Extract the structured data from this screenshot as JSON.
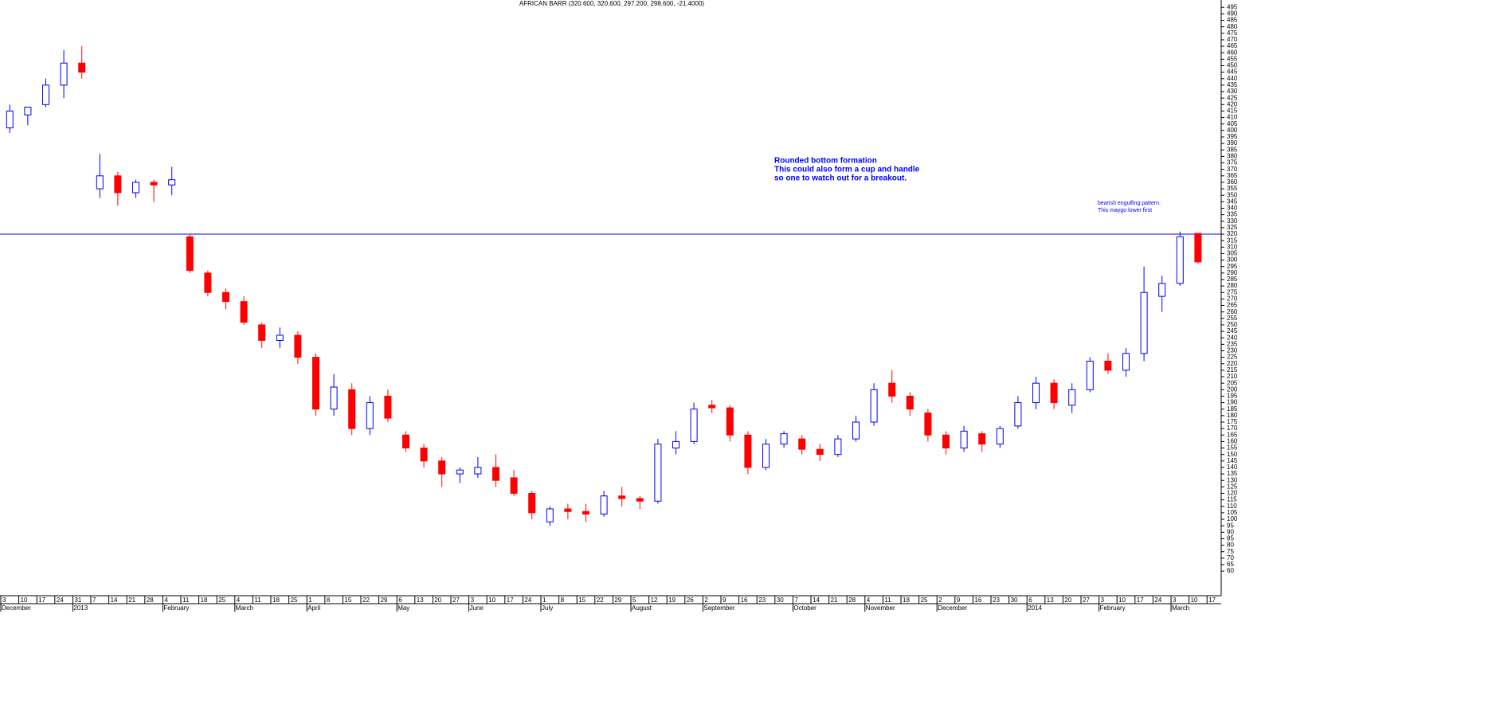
{
  "chart_data": {
    "type": "candlestick",
    "title": "AFRICAN BARR (320.600, 320.600, 297.200, 298.600, -21.4000)",
    "up_color": "#0000ff",
    "down_color": "#ff0000",
    "open": [
      402,
      412,
      420,
      435,
      452,
      355,
      365,
      352,
      360,
      358,
      318,
      290,
      275,
      268,
      250,
      238,
      242,
      225,
      185,
      200,
      170,
      195,
      165,
      155,
      145,
      135,
      135,
      140,
      132,
      120,
      98,
      108,
      106,
      104,
      118,
      116,
      114,
      155,
      160,
      188,
      186,
      165,
      140,
      158,
      162,
      154,
      150,
      162,
      175,
      205,
      195,
      182,
      165,
      155,
      166,
      158,
      172,
      190,
      205,
      188,
      200,
      222,
      215,
      228,
      272,
      282,
      320.6
    ],
    "high": [
      420,
      418,
      440,
      462,
      465,
      382,
      368,
      362,
      362,
      372,
      320,
      292,
      278,
      272,
      252,
      248,
      245,
      228,
      212,
      205,
      195,
      200,
      168,
      158,
      148,
      140,
      148,
      150,
      138,
      122,
      110,
      112,
      112,
      122,
      125,
      118,
      162,
      168,
      190,
      192,
      188,
      168,
      162,
      168,
      165,
      158,
      165,
      180,
      205,
      215,
      198,
      185,
      168,
      172,
      168,
      172,
      195,
      210,
      208,
      205,
      225,
      228,
      232,
      295,
      288,
      322,
      320.6
    ],
    "low": [
      398,
      404,
      418,
      425,
      440,
      348,
      342,
      348,
      345,
      350,
      290,
      272,
      262,
      250,
      232,
      232,
      220,
      180,
      180,
      165,
      165,
      175,
      152,
      140,
      125,
      128,
      132,
      125,
      118,
      100,
      95,
      100,
      98,
      102,
      110,
      108,
      112,
      150,
      158,
      182,
      160,
      135,
      138,
      155,
      150,
      145,
      148,
      160,
      172,
      190,
      180,
      160,
      150,
      152,
      152,
      155,
      170,
      185,
      185,
      182,
      198,
      212,
      210,
      222,
      260,
      280,
      297.2
    ],
    "close": [
      415,
      418,
      435,
      452,
      445,
      365,
      352,
      360,
      358,
      362,
      292,
      275,
      268,
      252,
      238,
      242,
      225,
      185,
      202,
      170,
      190,
      178,
      155,
      145,
      135,
      138,
      140,
      130,
      120,
      105,
      108,
      106,
      104,
      118,
      116,
      114,
      158,
      160,
      185,
      186,
      165,
      140,
      158,
      166,
      154,
      150,
      162,
      175,
      200,
      195,
      185,
      165,
      155,
      168,
      158,
      170,
      190,
      205,
      190,
      200,
      222,
      215,
      228,
      275,
      282,
      318,
      298.6
    ],
    "hline": 320,
    "hline_color": "#0000ff",
    "ylim": [
      57,
      497
    ],
    "yticks": [
      60,
      65,
      70,
      75,
      80,
      85,
      90,
      95,
      100,
      105,
      110,
      115,
      120,
      125,
      130,
      135,
      140,
      145,
      150,
      155,
      160,
      165,
      170,
      175,
      180,
      185,
      190,
      195,
      200,
      205,
      210,
      215,
      220,
      225,
      230,
      235,
      240,
      245,
      250,
      255,
      260,
      265,
      270,
      275,
      280,
      285,
      290,
      295,
      300,
      305,
      310,
      315,
      320,
      325,
      330,
      335,
      340,
      345,
      350,
      355,
      360,
      365,
      370,
      375,
      380,
      385,
      390,
      395,
      400,
      405,
      410,
      415,
      420,
      425,
      430,
      435,
      440,
      445,
      450,
      455,
      460,
      465,
      470,
      475,
      480,
      485,
      490,
      495
    ],
    "week_labels": [
      3,
      10,
      17,
      24,
      31,
      7,
      14,
      21,
      28,
      4,
      11,
      18,
      25,
      4,
      11,
      18,
      25,
      1,
      8,
      15,
      22,
      29,
      6,
      13,
      20,
      27,
      3,
      10,
      17,
      24,
      1,
      8,
      15,
      22,
      29,
      5,
      12,
      19,
      26,
      2,
      9,
      16,
      23,
      30,
      7,
      14,
      21,
      28,
      4,
      11,
      18,
      25,
      2,
      9,
      16,
      23,
      30,
      6,
      13,
      20,
      27,
      3,
      10,
      17,
      24,
      3,
      10,
      17
    ],
    "month_labels": [
      {
        "value": 0,
        "label": "December"
      },
      {
        "value": 4,
        "label": "2013"
      },
      {
        "value": 9,
        "label": "February"
      },
      {
        "value": 13,
        "label": "March"
      },
      {
        "value": 17,
        "label": "April"
      },
      {
        "value": 22,
        "label": "May"
      },
      {
        "value": 26,
        "label": "June"
      },
      {
        "value": 30,
        "label": "July"
      },
      {
        "value": 35,
        "label": "August"
      },
      {
        "value": 39,
        "label": "September"
      },
      {
        "value": 44,
        "label": "October"
      },
      {
        "value": 48,
        "label": "November"
      },
      {
        "value": 52,
        "label": "December"
      },
      {
        "value": 57,
        "label": "2014"
      },
      {
        "value": 61,
        "label": "February"
      },
      {
        "value": 65,
        "label": "March"
      }
    ],
    "annotations": [
      {
        "lines": [
          "Rounded bottom formation",
          "This could also form a cup and handle",
          "so one to watch out for a breakout."
        ],
        "color": "#0000ff"
      },
      {
        "lines": [
          "bearish engulfing pattern.",
          "This maygo lower first"
        ],
        "color": "#0000ff"
      }
    ]
  }
}
